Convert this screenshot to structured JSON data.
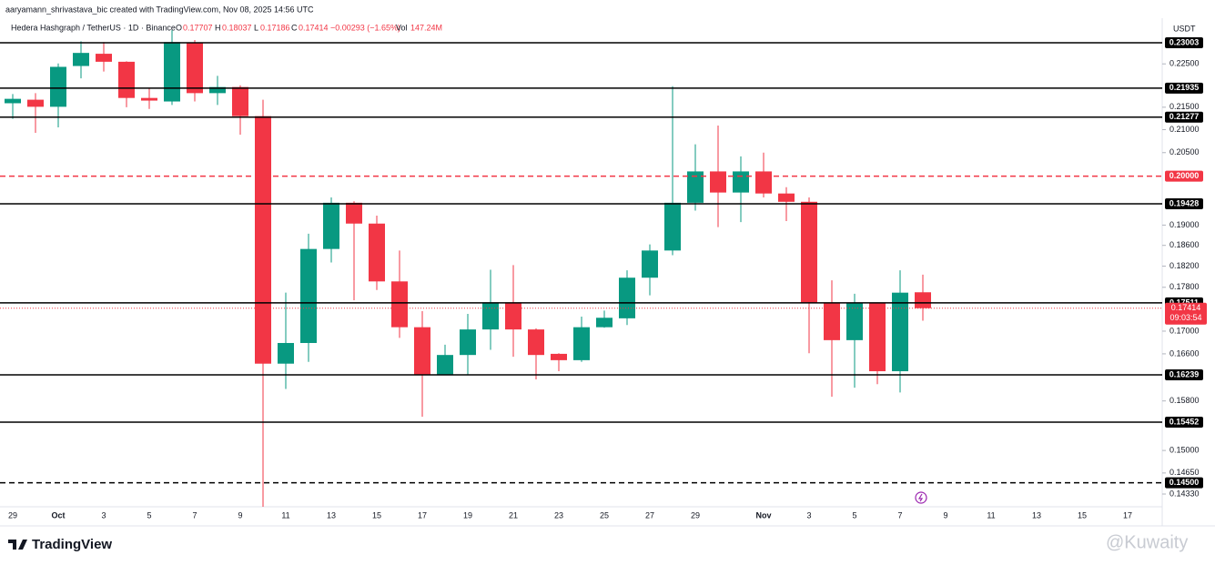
{
  "chart_data": {
    "type": "candlestick",
    "caption": "aaryamann_shrivastava_bic created with TradingView.com, Nov 08, 2025 14:56 UTC",
    "legend": {
      "symbol": "Hedera Hashgraph / TetherUS · 1D · Binance",
      "o_label": "O",
      "o": "0.17707",
      "h_label": "H",
      "h": "0.18037",
      "l_label": "L",
      "l": "0.17186",
      "c_label": "C",
      "c": "0.17414",
      "change": "−0.00293 (−1.65%)",
      "vol_label": "Vol",
      "vol": "147.24M"
    },
    "currency": "USDT",
    "brand": "TradingView",
    "watermark": "@Kuwaity",
    "log_scale": true,
    "grid": false,
    "up_color": "#089981",
    "down_color": "#f23645",
    "categories": [
      "29",
      null,
      "Oct",
      null,
      "3",
      null,
      "5",
      null,
      "7",
      null,
      "9",
      null,
      "11",
      null,
      "13",
      null,
      "15",
      null,
      "17",
      null,
      "19",
      null,
      "21",
      null,
      "23",
      null,
      "25",
      null,
      "27",
      null,
      "29",
      null,
      null,
      "Nov",
      null,
      "3",
      null,
      "5",
      null,
      "7",
      null,
      "9",
      null,
      "11",
      null,
      "13",
      null,
      "15",
      null,
      "17"
    ],
    "open": [
      0.2159,
      0.2167,
      0.2151,
      0.2245,
      0.2274,
      0.2255,
      0.2171,
      0.2163,
      0.23,
      0.2182,
      0.2196,
      0.213,
      0.1643,
      0.1679,
      0.1853,
      0.1945,
      0.1903,
      0.1791,
      0.1707,
      0.1624,
      0.1658,
      0.1703,
      0.1752,
      0.1703,
      0.166,
      0.1649,
      0.1707,
      0.1723,
      0.1798,
      0.185,
      0.1945,
      0.201,
      0.1966,
      0.201,
      0.1964,
      0.1947,
      0.1751,
      0.1684,
      0.1751,
      0.163,
      0.17707,
      null,
      null,
      null,
      null,
      null,
      null,
      null,
      null,
      null
    ],
    "high": [
      0.218,
      0.2182,
      0.2251,
      0.2304,
      0.2302,
      0.2256,
      0.2194,
      0.2331,
      0.2307,
      0.2222,
      0.22,
      0.2167,
      0.177,
      0.1883,
      0.1956,
      0.1948,
      0.1919,
      0.185,
      0.1736,
      0.1676,
      0.1731,
      0.1813,
      0.1822,
      0.1705,
      0.1661,
      0.1726,
      0.1737,
      0.1812,
      0.1862,
      0.2198,
      0.2068,
      0.2109,
      0.2042,
      0.205,
      0.1977,
      0.1956,
      0.1793,
      0.1768,
      0.1752,
      0.1812,
      0.18037,
      null,
      null,
      null,
      null,
      null,
      null,
      null,
      null,
      null
    ],
    "low": [
      0.2124,
      0.2093,
      0.2105,
      0.2216,
      0.2232,
      0.215,
      0.2146,
      0.2155,
      0.2163,
      0.2155,
      0.2089,
      0.1414,
      0.16,
      0.1646,
      0.1827,
      0.1756,
      0.1775,
      0.1688,
      0.1554,
      0.1623,
      0.1623,
      0.1667,
      0.1655,
      0.1616,
      0.163,
      0.1646,
      0.1706,
      0.1711,
      0.1765,
      0.1841,
      0.1929,
      0.1896,
      0.1906,
      0.1956,
      0.1908,
      0.1661,
      0.1587,
      0.1602,
      0.1608,
      0.1594,
      0.17186,
      null,
      null,
      null,
      null,
      null,
      null,
      null,
      null,
      null
    ],
    "close": [
      0.2169,
      0.2151,
      0.2243,
      0.2276,
      0.2255,
      0.2171,
      0.2165,
      0.2302,
      0.2182,
      0.2196,
      0.213,
      0.1643,
      0.1679,
      0.1853,
      0.1945,
      0.1903,
      0.1791,
      0.1707,
      0.1624,
      0.1658,
      0.1703,
      0.1752,
      0.1703,
      0.1658,
      0.1649,
      0.1707,
      0.1724,
      0.1798,
      0.185,
      0.1945,
      0.201,
      0.1966,
      0.201,
      0.1964,
      0.1947,
      0.1751,
      0.1684,
      0.1751,
      0.163,
      0.177,
      0.17414,
      null,
      null,
      null,
      null,
      null,
      null,
      null,
      null,
      null
    ],
    "ylim": [
      0.1414,
      0.2338
    ],
    "yticks": [
      {
        "value": 0.225,
        "label": "0.22500"
      },
      {
        "value": 0.215,
        "label": "0.21500"
      },
      {
        "value": 0.21,
        "label": "0.21000"
      },
      {
        "value": 0.205,
        "label": "0.20500"
      },
      {
        "value": 0.19,
        "label": "0.19000"
      },
      {
        "value": 0.186,
        "label": "0.18600"
      },
      {
        "value": 0.182,
        "label": "0.18200"
      },
      {
        "value": 0.178,
        "label": "0.17800"
      },
      {
        "value": 0.17,
        "label": "0.17000"
      },
      {
        "value": 0.166,
        "label": "0.16600"
      },
      {
        "value": 0.158,
        "label": "0.15800"
      },
      {
        "value": 0.15,
        "label": "0.15000"
      },
      {
        "value": 0.1465,
        "label": "0.14650"
      },
      {
        "value": 0.1433,
        "label": "0.14330"
      }
    ],
    "levels": [
      {
        "value": 0.23003,
        "label": "0.23003",
        "color": "#000000",
        "dashed": false
      },
      {
        "value": 0.21935,
        "label": "0.21935",
        "color": "#000000",
        "dashed": false
      },
      {
        "value": 0.21277,
        "label": "0.21277",
        "color": "#000000",
        "dashed": false
      },
      {
        "value": 0.2,
        "label": "0.20000",
        "color": "#f23645",
        "dashed": true
      },
      {
        "value": 0.19428,
        "label": "0.19428",
        "color": "#000000",
        "dashed": false
      },
      {
        "value": 0.17511,
        "label": "0.17511",
        "color": "#000000",
        "dashed": false
      },
      {
        "value": 0.16239,
        "label": "0.16239",
        "color": "#000000",
        "dashed": false
      },
      {
        "value": 0.15452,
        "label": "0.15452",
        "color": "#000000",
        "dashed": false
      },
      {
        "value": 0.145,
        "label": "0.14500",
        "color": "#000000",
        "dashed": true
      }
    ],
    "last_price": {
      "value": 0.17414,
      "label": "0.17414"
    },
    "countdown": "09:03:54"
  }
}
